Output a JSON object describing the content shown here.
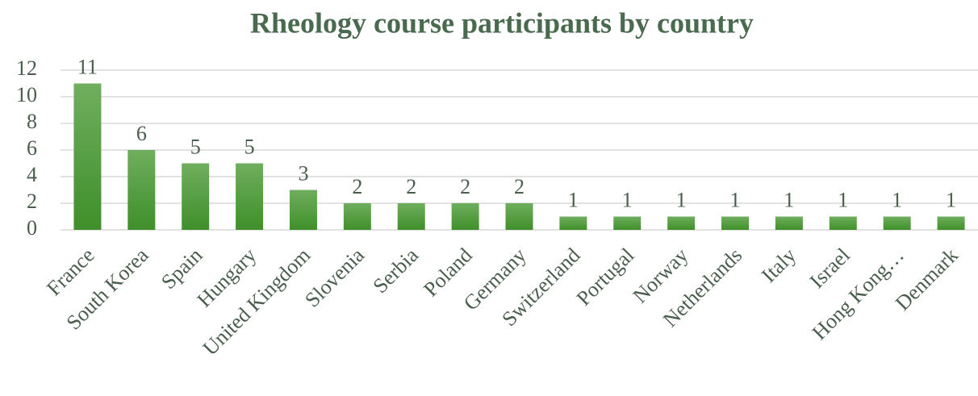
{
  "chart_data": {
    "type": "bar",
    "title": "Rheology course participants by country",
    "categories": [
      "France",
      "South Korea",
      "Spain",
      "Hungary",
      "United Kingdom",
      "Slovenia",
      "Serbia",
      "Poland",
      "Germany",
      "Switzerland",
      "Portugal",
      "Norway",
      "Netherlands",
      "Italy",
      "Israel",
      "Hong Kong…",
      "Denmark"
    ],
    "values": [
      11,
      6,
      5,
      5,
      3,
      2,
      2,
      2,
      2,
      1,
      1,
      1,
      1,
      1,
      1,
      1,
      1
    ],
    "color": "#55a040",
    "ylim": [
      0,
      12
    ],
    "yticks": [
      0,
      2,
      4,
      6,
      8,
      10,
      12
    ],
    "grid": true
  }
}
